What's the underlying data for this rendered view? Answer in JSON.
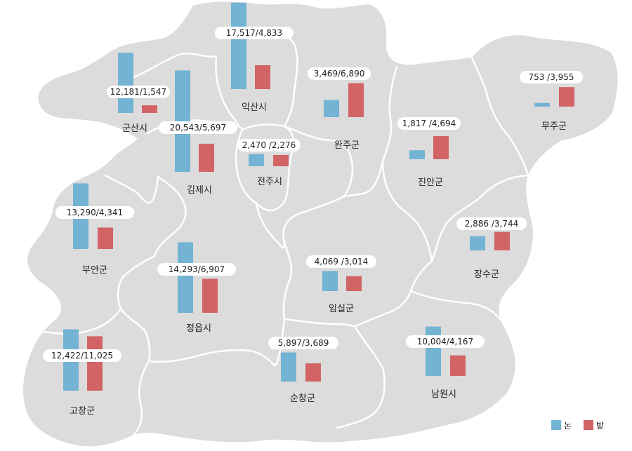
{
  "legend": {
    "rice": {
      "label": "논",
      "color": "#73b3d4"
    },
    "field": {
      "label": "밭",
      "color": "#d26465"
    }
  },
  "regions": [
    {
      "key": "gunsan",
      "name": "군산시",
      "label": "12,181/1,547",
      "rice": 12181,
      "field": 1547
    },
    {
      "key": "iksan",
      "name": "익산시",
      "label": "17,517/4,833",
      "rice": 17517,
      "field": 4833
    },
    {
      "key": "gimje",
      "name": "김제시",
      "label": "20,543/5,697",
      "rice": 20543,
      "field": 5697
    },
    {
      "key": "jeonju",
      "name": "전주시",
      "label": "2,470 /2,276",
      "rice": 2470,
      "field": 2276
    },
    {
      "key": "wanju",
      "name": "완주군",
      "label": "3,469/6,890",
      "rice": 3469,
      "field": 6890
    },
    {
      "key": "jinan",
      "name": "진안군",
      "label": "1,817 /4,694",
      "rice": 1817,
      "field": 4694
    },
    {
      "key": "muju",
      "name": "무주군",
      "label": "753 /3,955",
      "rice": 753,
      "field": 3955
    },
    {
      "key": "buan",
      "name": "부안군",
      "label": "13,290/4,341",
      "rice": 13290,
      "field": 4341
    },
    {
      "key": "jeongeup",
      "name": "정읍시",
      "label": "14,293/6,907",
      "rice": 14293,
      "field": 6907
    },
    {
      "key": "imsil",
      "name": "임실군",
      "label": "4,069 /3,014",
      "rice": 4069,
      "field": 3014
    },
    {
      "key": "jangsu",
      "name": "장수군",
      "label": "2,886 /3,744",
      "rice": 2886,
      "field": 3744
    },
    {
      "key": "gochang",
      "name": "고창군",
      "label": "12,422/11,025",
      "rice": 12422,
      "field": 11025
    },
    {
      "key": "sunchang",
      "name": "순창군",
      "label": "5,897/3,689",
      "rice": 5897,
      "field": 3689
    },
    {
      "key": "namwon",
      "name": "남원시",
      "label": "10,004/4,167",
      "rice": 10004,
      "field": 4167
    }
  ]
}
